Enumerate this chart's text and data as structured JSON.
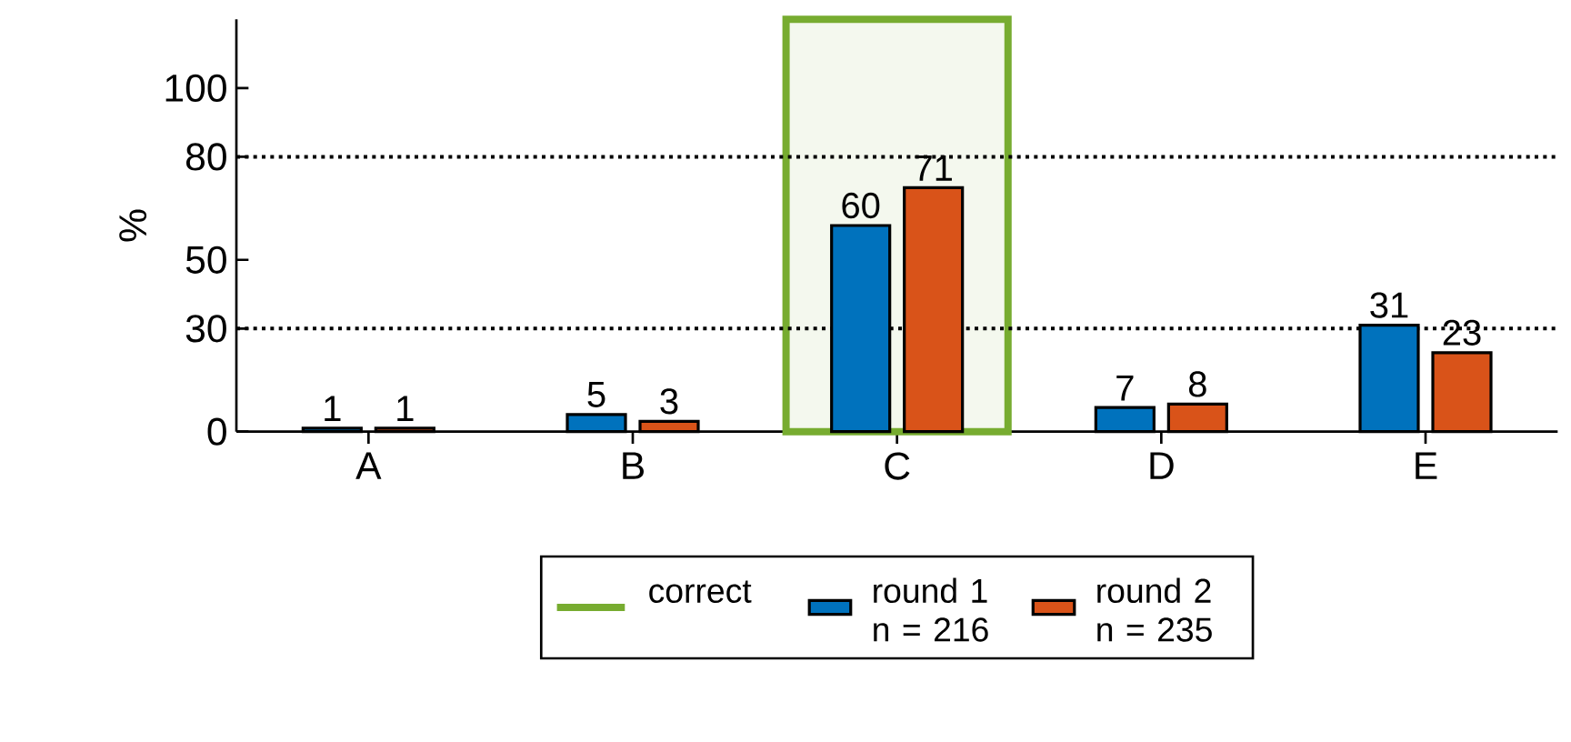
{
  "chart_data": {
    "type": "bar",
    "ylabel": "%",
    "categories": [
      "A",
      "B",
      "C",
      "D",
      "E"
    ],
    "series": [
      {
        "name": "round 1 n = 216",
        "color": "#0072bd",
        "values": [
          1,
          5,
          60,
          7,
          31
        ]
      },
      {
        "name": "round 2 n = 235",
        "color": "#d95319",
        "values": [
          1,
          3,
          71,
          8,
          23
        ]
      }
    ],
    "ylim": [
      0,
      120
    ],
    "yticks": [
      0,
      30,
      50,
      80,
      100
    ],
    "ref_lines": [
      {
        "axis": "y",
        "value": 30,
        "line_style": "dotted"
      },
      {
        "axis": "y",
        "value": 80,
        "line_style": "dotted"
      }
    ],
    "bands": [
      {
        "axis": "x",
        "from": "C",
        "to": "C",
        "label": "correct",
        "color": "#77ac30"
      }
    ],
    "data_labels": true,
    "grid": false,
    "legend": "bottom"
  }
}
